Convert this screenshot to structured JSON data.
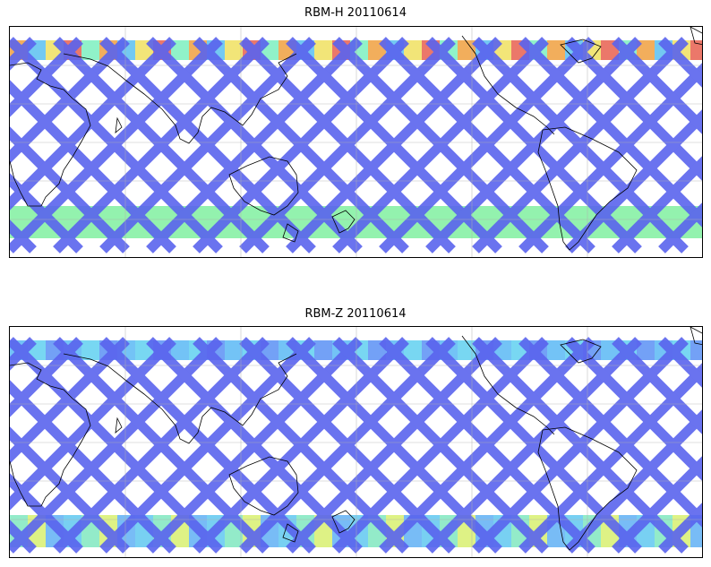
{
  "panels": [
    {
      "title": "RBM-H 20110614",
      "swath_color": "#5a64ee",
      "polar_colors": {
        "north": [
          "#5ac0f0",
          "#7df0c0",
          "#f0e060",
          "#f0a040",
          "#e86050"
        ],
        "south": [
          "#50c8f0",
          "#80f0a0",
          "#f0f060",
          "#f08040",
          "#e05050"
        ]
      }
    },
    {
      "title": "RBM-Z 20110614",
      "swath_color": "#5a64ee",
      "polar_colors": {
        "north": [
          "#5ab8f5",
          "#60d0f0",
          "#5a90f5"
        ],
        "south": [
          "#60c8f0",
          "#80e8c0",
          "#d8f070",
          "#60b0f5"
        ]
      }
    }
  ]
}
